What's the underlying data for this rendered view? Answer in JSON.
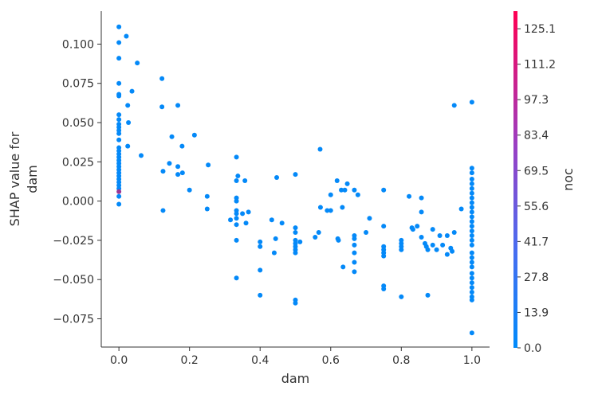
{
  "chart_data": {
    "type": "scatter",
    "title": "",
    "xlabel": "dam",
    "ylabel_lines": [
      "SHAP value for",
      "dam"
    ],
    "xlim": [
      -0.05,
      1.05
    ],
    "ylim": [
      -0.093,
      0.121
    ],
    "x_ticks": [
      0.0,
      0.2,
      0.4,
      0.6,
      0.8,
      1.0
    ],
    "x_tick_labels": [
      "0.0",
      "0.2",
      "0.4",
      "0.6",
      "0.8",
      "1.0"
    ],
    "y_ticks": [
      0.1,
      0.075,
      0.05,
      0.025,
      0.0,
      -0.025,
      -0.05,
      -0.075
    ],
    "y_tick_labels": [
      "0.100",
      "0.075",
      "0.050",
      "0.025",
      "0.000",
      "−0.025",
      "−0.050",
      "−0.075"
    ],
    "grid": false,
    "colorbar": {
      "label": "noc",
      "min": 0.0,
      "max": 132,
      "ticks": [
        0.0,
        13.9,
        27.8,
        41.7,
        55.6,
        69.5,
        83.4,
        97.3,
        111.2,
        125.1
      ],
      "tick_labels": [
        "0.0",
        "13.9",
        "27.8",
        "41.7",
        "55.6",
        "69.5",
        "83.4",
        "97.3",
        "111.2",
        "125.1"
      ],
      "color_low": "#008bfb",
      "color_high": "#ff0052"
    },
    "points": [
      [
        0.0,
        0.111,
        2
      ],
      [
        0.0,
        0.101,
        2
      ],
      [
        0.0,
        0.091,
        2
      ],
      [
        0.0,
        0.075,
        2
      ],
      [
        0.0,
        0.068,
        2
      ],
      [
        0.0,
        0.067,
        2
      ],
      [
        0.0,
        0.055,
        2
      ],
      [
        0.0,
        0.052,
        2
      ],
      [
        0.0,
        0.049,
        2
      ],
      [
        0.0,
        0.047,
        2
      ],
      [
        0.0,
        0.045,
        2
      ],
      [
        0.0,
        0.043,
        2
      ],
      [
        0.0,
        0.039,
        2
      ],
      [
        0.0,
        0.034,
        2
      ],
      [
        0.0,
        0.032,
        2
      ],
      [
        0.0,
        0.03,
        2
      ],
      [
        0.0,
        0.028,
        2
      ],
      [
        0.0,
        0.026,
        2
      ],
      [
        0.0,
        0.024,
        2
      ],
      [
        0.0,
        0.022,
        2
      ],
      [
        0.0,
        0.02,
        2
      ],
      [
        0.0,
        0.018,
        2
      ],
      [
        0.0,
        0.016,
        2
      ],
      [
        0.0,
        0.014,
        2
      ],
      [
        0.0,
        0.012,
        2
      ],
      [
        0.0,
        0.01,
        2
      ],
      [
        0.0,
        0.008,
        2
      ],
      [
        0.0,
        0.006,
        80
      ],
      [
        0.0,
        0.003,
        2
      ],
      [
        0.0,
        -0.002,
        2
      ],
      [
        0.021,
        0.105,
        2
      ],
      [
        0.025,
        0.061,
        2
      ],
      [
        0.025,
        0.035,
        2
      ],
      [
        0.027,
        0.05,
        2
      ],
      [
        0.037,
        0.07,
        2
      ],
      [
        0.052,
        0.088,
        2
      ],
      [
        0.063,
        0.029,
        2
      ],
      [
        0.122,
        0.078,
        2
      ],
      [
        0.122,
        0.06,
        2
      ],
      [
        0.125,
        0.019,
        2
      ],
      [
        0.125,
        -0.006,
        2
      ],
      [
        0.143,
        0.024,
        2
      ],
      [
        0.15,
        0.041,
        2
      ],
      [
        0.167,
        0.061,
        2
      ],
      [
        0.167,
        0.022,
        2
      ],
      [
        0.167,
        0.017,
        2
      ],
      [
        0.179,
        0.035,
        2
      ],
      [
        0.18,
        0.018,
        2
      ],
      [
        0.2,
        0.007,
        2
      ],
      [
        0.214,
        0.042,
        2
      ],
      [
        0.25,
        0.003,
        2
      ],
      [
        0.25,
        -0.005,
        2
      ],
      [
        0.253,
        0.023,
        2
      ],
      [
        0.316,
        -0.012,
        2
      ],
      [
        0.333,
        0.028,
        2
      ],
      [
        0.333,
        0.013,
        2
      ],
      [
        0.333,
        0.002,
        2
      ],
      [
        0.333,
        0.0,
        2
      ],
      [
        0.333,
        -0.006,
        2
      ],
      [
        0.333,
        -0.008,
        2
      ],
      [
        0.333,
        -0.011,
        2
      ],
      [
        0.333,
        -0.015,
        2
      ],
      [
        0.333,
        -0.025,
        2
      ],
      [
        0.333,
        -0.049,
        2
      ],
      [
        0.337,
        0.016,
        2
      ],
      [
        0.35,
        -0.008,
        2
      ],
      [
        0.357,
        0.013,
        2
      ],
      [
        0.36,
        -0.014,
        2
      ],
      [
        0.367,
        -0.007,
        2
      ],
      [
        0.4,
        -0.026,
        2
      ],
      [
        0.4,
        -0.029,
        2
      ],
      [
        0.4,
        -0.044,
        2
      ],
      [
        0.4,
        -0.06,
        2
      ],
      [
        0.433,
        -0.012,
        2
      ],
      [
        0.44,
        -0.033,
        2
      ],
      [
        0.444,
        -0.024,
        2
      ],
      [
        0.447,
        0.015,
        2
      ],
      [
        0.462,
        -0.014,
        2
      ],
      [
        0.5,
        0.017,
        2
      ],
      [
        0.5,
        -0.017,
        2
      ],
      [
        0.5,
        -0.02,
        2
      ],
      [
        0.5,
        -0.025,
        2
      ],
      [
        0.5,
        -0.027,
        2
      ],
      [
        0.5,
        -0.029,
        2
      ],
      [
        0.5,
        -0.031,
        2
      ],
      [
        0.5,
        -0.033,
        2
      ],
      [
        0.5,
        -0.063,
        2
      ],
      [
        0.5,
        -0.065,
        2
      ],
      [
        0.513,
        -0.026,
        2
      ],
      [
        0.556,
        -0.023,
        2
      ],
      [
        0.566,
        -0.02,
        2
      ],
      [
        0.57,
        0.033,
        2
      ],
      [
        0.571,
        -0.004,
        2
      ],
      [
        0.59,
        -0.006,
        2
      ],
      [
        0.6,
        0.004,
        2
      ],
      [
        0.6,
        -0.006,
        2
      ],
      [
        0.618,
        0.013,
        2
      ],
      [
        0.62,
        -0.024,
        2
      ],
      [
        0.622,
        -0.025,
        2
      ],
      [
        0.63,
        0.007,
        2
      ],
      [
        0.633,
        -0.004,
        2
      ],
      [
        0.635,
        -0.042,
        2
      ],
      [
        0.64,
        0.007,
        2
      ],
      [
        0.647,
        0.011,
        2
      ],
      [
        0.667,
        0.007,
        2
      ],
      [
        0.667,
        -0.022,
        2
      ],
      [
        0.667,
        -0.024,
        2
      ],
      [
        0.667,
        -0.028,
        2
      ],
      [
        0.667,
        -0.033,
        2
      ],
      [
        0.667,
        -0.039,
        2
      ],
      [
        0.667,
        -0.045,
        2
      ],
      [
        0.677,
        0.004,
        2
      ],
      [
        0.7,
        -0.02,
        2
      ],
      [
        0.71,
        -0.011,
        2
      ],
      [
        0.75,
        0.007,
        2
      ],
      [
        0.75,
        -0.016,
        2
      ],
      [
        0.75,
        -0.029,
        2
      ],
      [
        0.75,
        -0.031,
        2
      ],
      [
        0.75,
        -0.033,
        2
      ],
      [
        0.75,
        -0.035,
        2
      ],
      [
        0.75,
        -0.054,
        2
      ],
      [
        0.75,
        -0.056,
        2
      ],
      [
        0.8,
        -0.025,
        2
      ],
      [
        0.8,
        -0.027,
        2
      ],
      [
        0.8,
        -0.029,
        2
      ],
      [
        0.8,
        -0.031,
        2
      ],
      [
        0.8,
        -0.061,
        2
      ],
      [
        0.822,
        0.003,
        2
      ],
      [
        0.83,
        -0.017,
        2
      ],
      [
        0.833,
        -0.018,
        2
      ],
      [
        0.845,
        -0.016,
        2
      ],
      [
        0.857,
        0.002,
        2
      ],
      [
        0.857,
        -0.007,
        2
      ],
      [
        0.857,
        -0.023,
        2
      ],
      [
        0.867,
        -0.027,
        2
      ],
      [
        0.871,
        -0.029,
        2
      ],
      [
        0.875,
        -0.031,
        2
      ],
      [
        0.875,
        -0.06,
        2
      ],
      [
        0.889,
        -0.018,
        2
      ],
      [
        0.889,
        -0.028,
        2
      ],
      [
        0.9,
        -0.031,
        2
      ],
      [
        0.909,
        -0.022,
        2
      ],
      [
        0.917,
        -0.028,
        2
      ],
      [
        0.93,
        -0.022,
        2
      ],
      [
        0.93,
        -0.034,
        2
      ],
      [
        0.94,
        -0.03,
        2
      ],
      [
        0.944,
        -0.032,
        2
      ],
      [
        0.95,
        0.061,
        2
      ],
      [
        0.95,
        -0.02,
        2
      ],
      [
        0.97,
        -0.005,
        2
      ],
      [
        1.0,
        0.063,
        2
      ],
      [
        1.0,
        0.021,
        2
      ],
      [
        1.0,
        0.018,
        2
      ],
      [
        1.0,
        0.014,
        2
      ],
      [
        1.0,
        0.011,
        2
      ],
      [
        1.0,
        0.008,
        2
      ],
      [
        1.0,
        0.005,
        2
      ],
      [
        1.0,
        0.002,
        2
      ],
      [
        1.0,
        -0.001,
        2
      ],
      [
        1.0,
        -0.004,
        2
      ],
      [
        1.0,
        -0.007,
        2
      ],
      [
        1.0,
        -0.01,
        2
      ],
      [
        1.0,
        -0.013,
        2
      ],
      [
        1.0,
        -0.016,
        2
      ],
      [
        1.0,
        -0.019,
        2
      ],
      [
        1.0,
        -0.022,
        2
      ],
      [
        1.0,
        -0.025,
        2
      ],
      [
        1.0,
        -0.028,
        2
      ],
      [
        1.0,
        -0.033,
        2
      ],
      [
        1.0,
        -0.036,
        2
      ],
      [
        1.0,
        -0.039,
        2
      ],
      [
        1.0,
        -0.042,
        2
      ],
      [
        1.0,
        -0.046,
        2
      ],
      [
        1.0,
        -0.049,
        2
      ],
      [
        1.0,
        -0.052,
        2
      ],
      [
        1.0,
        -0.055,
        2
      ],
      [
        1.0,
        -0.058,
        2
      ],
      [
        1.0,
        -0.061,
        2
      ],
      [
        1.0,
        -0.063,
        2
      ],
      [
        1.0,
        -0.084,
        2
      ]
    ]
  }
}
